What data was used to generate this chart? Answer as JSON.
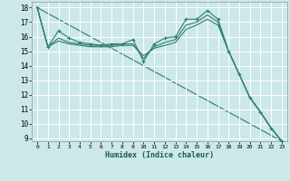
{
  "title": "",
  "xlabel": "Humidex (Indice chaleur)",
  "bg_color": "#cce8e8",
  "grid_color": "#ffffff",
  "line_color": "#2e7d6e",
  "xlim": [
    -0.5,
    23.5
  ],
  "ylim": [
    8.8,
    18.4
  ],
  "xticks": [
    0,
    1,
    2,
    3,
    4,
    5,
    6,
    7,
    8,
    9,
    10,
    11,
    12,
    13,
    14,
    15,
    16,
    17,
    18,
    19,
    20,
    21,
    22,
    23
  ],
  "yticks": [
    9,
    10,
    11,
    12,
    13,
    14,
    15,
    16,
    17,
    18
  ],
  "line_main": {
    "x": [
      0,
      1,
      2,
      3,
      4,
      5,
      6,
      7,
      8,
      9,
      10,
      11,
      12,
      13,
      14,
      15,
      16,
      17,
      18,
      19,
      20,
      21,
      22,
      23
    ],
    "y": [
      18.0,
      15.3,
      16.4,
      15.9,
      15.6,
      15.5,
      15.4,
      15.5,
      15.5,
      15.8,
      14.3,
      15.5,
      15.9,
      16.0,
      17.2,
      17.2,
      17.8,
      17.2,
      15.0,
      13.4,
      11.8,
      10.8,
      9.7,
      8.8
    ]
  },
  "line_smooth1": {
    "x": [
      0,
      1,
      2,
      3,
      4,
      5,
      6,
      7,
      8,
      9,
      10,
      11,
      12,
      13,
      14,
      15,
      16,
      17,
      18,
      19,
      20,
      21,
      22,
      23
    ],
    "y": [
      18.0,
      15.3,
      15.9,
      15.6,
      15.5,
      15.4,
      15.4,
      15.4,
      15.5,
      15.5,
      14.5,
      15.3,
      15.6,
      15.8,
      16.8,
      17.0,
      17.5,
      17.0,
      15.0,
      13.4,
      11.8,
      10.8,
      9.7,
      8.8
    ]
  },
  "line_smooth2": {
    "x": [
      0,
      1,
      2,
      3,
      4,
      5,
      6,
      7,
      8,
      9,
      10,
      11,
      12,
      13,
      14,
      15,
      16,
      17,
      18,
      19,
      20,
      21,
      22,
      23
    ],
    "y": [
      18.0,
      15.3,
      15.7,
      15.5,
      15.4,
      15.3,
      15.3,
      15.3,
      15.4,
      15.4,
      14.7,
      15.2,
      15.4,
      15.6,
      16.5,
      16.8,
      17.2,
      16.8,
      15.0,
      13.4,
      11.8,
      10.8,
      9.7,
      8.8
    ]
  },
  "line_diagonal": {
    "x": [
      0,
      23
    ],
    "y": [
      18.0,
      8.8
    ]
  }
}
